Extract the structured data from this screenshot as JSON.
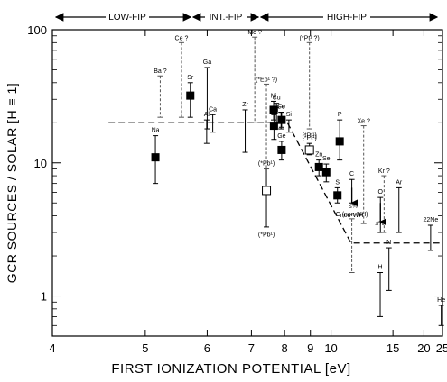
{
  "chart_data": {
    "type": "scatter",
    "xlabel": "FIRST   IONIZATION   POTENTIAL [eV]",
    "ylabel": "GCR SOURCES / SOLAR   [H ≡ 1]",
    "x_scale": "reciprocal",
    "y_scale": "log",
    "xlim": [
      4,
      25
    ],
    "ylim": [
      0.5,
      100
    ],
    "x_ticks": [
      "4",
      "5",
      "6",
      "7",
      "8",
      "9",
      "10",
      "15",
      "20",
      "25"
    ],
    "y_ticks": [
      "1",
      "10",
      "100"
    ],
    "regions": [
      {
        "label": "LOW-FIP",
        "x_range": [
          4,
          8.1
        ]
      },
      {
        "label": "INT.-FIP",
        "x_range": [
          8.1,
          11.2
        ]
      },
      {
        "label": "HIGH-FIP",
        "x_range": [
          11.2,
          25
        ]
      }
    ],
    "model_line": {
      "style": "dashed",
      "points": [
        [
          4.55,
          20
        ],
        [
          8.1,
          20
        ],
        [
          11.2,
          2.5
        ],
        [
          25,
          2.5
        ]
      ]
    },
    "series": [
      {
        "marker": "filled-square",
        "points": [
          {
            "element": "Na",
            "x": 5.14,
            "y": 11.0,
            "y_low": 7.0,
            "y_high": 16.0
          },
          {
            "element": "Sr",
            "x": 5.69,
            "y": 32.0,
            "y_low": 22.0,
            "y_high": 40.0
          },
          {
            "element": "Mg",
            "x": 7.65,
            "y": 19.0,
            "y_low": 15.0,
            "y_high": 23.0
          },
          {
            "element": "Ni",
            "x": 7.64,
            "y": 25.0,
            "y_low": 21.0,
            "y_high": 29.0
          },
          {
            "element": "Fe",
            "x": 7.9,
            "y": 21.0,
            "y_low": 18.5,
            "y_high": 24.0
          },
          {
            "element": "Ge",
            "x": 7.9,
            "y": 12.5,
            "y_low": 10.5,
            "y_high": 14.5
          },
          {
            "element": "Zn",
            "x": 9.39,
            "y": 9.3,
            "y_low": 8.0,
            "y_high": 10.5
          },
          {
            "element": "Se",
            "x": 9.75,
            "y": 8.5,
            "y_low": 7.2,
            "y_high": 9.8
          },
          {
            "element": "P",
            "x": 10.49,
            "y": 14.5,
            "y_low": 10.5,
            "y_high": 21.0
          },
          {
            "element": "S",
            "x": 10.36,
            "y": 5.7,
            "y_low": 5.0,
            "y_high": 6.5
          }
        ]
      },
      {
        "marker": "open-square",
        "points": [
          {
            "element": "(*Pb¹)",
            "x": 7.42,
            "y": 6.2,
            "y_low": 3.3,
            "y_high": 9.0
          },
          {
            "element": "(*Pt¹)",
            "x": 8.96,
            "y": 12.5,
            "y_low": 11.5,
            "y_high": 14.0
          }
        ]
      },
      {
        "marker": "error-bar",
        "points": [
          {
            "element": "Ca",
            "x": 6.11,
            "y": 20.0,
            "y_low": 17.0,
            "y_high": 23.0
          },
          {
            "element": "Al",
            "x": 5.99,
            "y": 20.0,
            "y_low": 14.0,
            "y_high": 21.0
          },
          {
            "element": "Zr",
            "x": 6.84,
            "y": 20.0,
            "y_low": 12.0,
            "y_high": 25.0
          },
          {
            "element": "Cu",
            "x": 7.73,
            "y": 24.0,
            "y_low": 20.0,
            "y_high": 28.0
          },
          {
            "element": "Co",
            "x": 7.88,
            "y": 21.0,
            "y_low": 18.0,
            "y_high": 24.0
          },
          {
            "element": "Si",
            "x": 8.15,
            "y": 19.0,
            "y_low": 17.0,
            "y_high": 21.0
          },
          {
            "element": "Ga",
            "x": 6.0,
            "y": 43.0,
            "y_low": 18.0,
            "y_high": 52.0
          },
          {
            "element": "C",
            "x": 11.26,
            "y": 6.5,
            "y_low": 5.0,
            "y_high": 7.5
          },
          {
            "element": "O",
            "x": 13.62,
            "y": 5.0,
            "y_low": 3.0,
            "y_high": 5.5
          },
          {
            "element": "Ar",
            "x": 15.76,
            "y": 6.5,
            "y_low": 3.0,
            "y_high": 6.5
          },
          {
            "element": "N",
            "x": 14.53,
            "y": 2.1,
            "y_low": 1.1,
            "y_high": 2.3
          },
          {
            "element": "H",
            "x": 13.6,
            "y": 1.4,
            "y_low": 0.7,
            "y_high": 1.5
          },
          {
            "element": "22Ne",
            "x": 21.56,
            "y": 3.0,
            "y_low": 2.2,
            "y_high": 3.4
          },
          {
            "element": "He",
            "x": 24.59,
            "y": 0.65,
            "y_low": 0.6,
            "y_high": 0.85
          }
        ]
      },
      {
        "marker": "dashed-bar",
        "points": [
          {
            "element": "Ce ?",
            "x": 5.54,
            "y": 80.0,
            "y_low": 22.0,
            "y_high": 80.0
          },
          {
            "element": "Ba ?",
            "x": 5.21,
            "y": 45.0,
            "y_low": 22.0,
            "y_high": 45.0
          },
          {
            "element": "Mo ?",
            "x": 7.09,
            "y": 88.0,
            "y_low": 20.0,
            "y_high": 88.0
          },
          {
            "element": "(*Eb¹ ?)",
            "x": 7.42,
            "y": 39.0,
            "y_low": 9.0,
            "y_high": 39.0
          },
          {
            "element": "(*Pt¹ ?)",
            "x": 8.96,
            "y": 80.0,
            "y_low": 18.0,
            "y_high": 80.0
          },
          {
            "element": "Xe ?",
            "x": 12.13,
            "y": 19.0,
            "y_low": 3.5,
            "y_high": 19.0
          },
          {
            "element": "Kr ?",
            "x": 14.0,
            "y": 8.0,
            "y_low": 3.0,
            "y_high": 8.0
          },
          {
            "element": "C (non-NH)",
            "x": 11.26,
            "y": 2.9,
            "y_low": 1.5,
            "y_high": 3.8
          }
        ]
      }
    ],
    "extra_labels": {
      "pb_bottom": "(*Pb¹)",
      "pt_mid": "(*Pt¹)",
      "c_note": "non-WH",
      "c_small": "≤%",
      "o_small": "≤%"
    }
  }
}
